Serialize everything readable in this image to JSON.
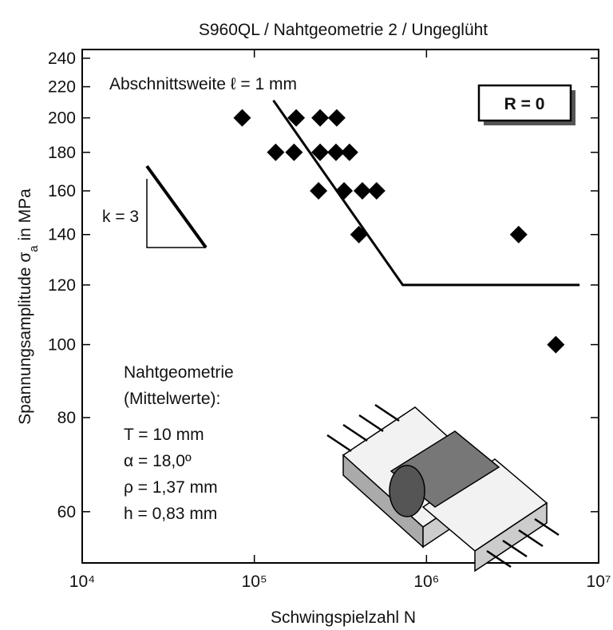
{
  "chart_data": {
    "type": "scatter",
    "title": "S960QL  /  Nahtgeometrie 2  /  Ungeglüht",
    "x_label": "Schwingspielzahl N",
    "y_label": [
      "Spannungsamplitude σ",
      "a",
      " in MPa"
    ],
    "x_scale": "log",
    "y_scale": "log",
    "xlim": [
      10000,
      10000000
    ],
    "xticks": [
      {
        "value": 10000,
        "label": "10⁴"
      },
      {
        "value": 100000,
        "label": "10⁵"
      },
      {
        "value": 1000000,
        "label": "10⁶"
      },
      {
        "value": 10000000,
        "label": "10⁷"
      }
    ],
    "ylim": [
      51.3,
      246.5
    ],
    "yticks": [
      60,
      80,
      100,
      120,
      140,
      160,
      180,
      200,
      220,
      240
    ],
    "series": [
      {
        "type": "scatter",
        "color": "#000000",
        "x": [
          85000,
          175000,
          241000,
          301000,
          133000,
          170000,
          241000,
          298000,
          357000,
          236000,
          332000,
          424000,
          513000,
          405000,
          3430000,
          5640000
        ],
        "values": [
          200,
          200,
          200,
          200,
          180,
          180,
          180,
          180,
          180,
          160,
          160,
          160,
          160,
          140,
          140,
          100
        ]
      },
      {
        "type": "line",
        "color": "#000000",
        "x": [
          129000,
          728000,
          7750000
        ],
        "values": [
          211,
          120,
          120
        ]
      }
    ],
    "annotations": {
      "section": "Abschnittsweite ℓ = 1 mm",
      "ratio": "R = 0",
      "slope": "k = 3",
      "geometry": [
        "Nahtgeometrie",
        "(Mittelwerte):",
        "T = 10 mm",
        "α = 18,0º",
        "ρ = 1,37 mm",
        "h = 0,83 mm"
      ]
    }
  }
}
